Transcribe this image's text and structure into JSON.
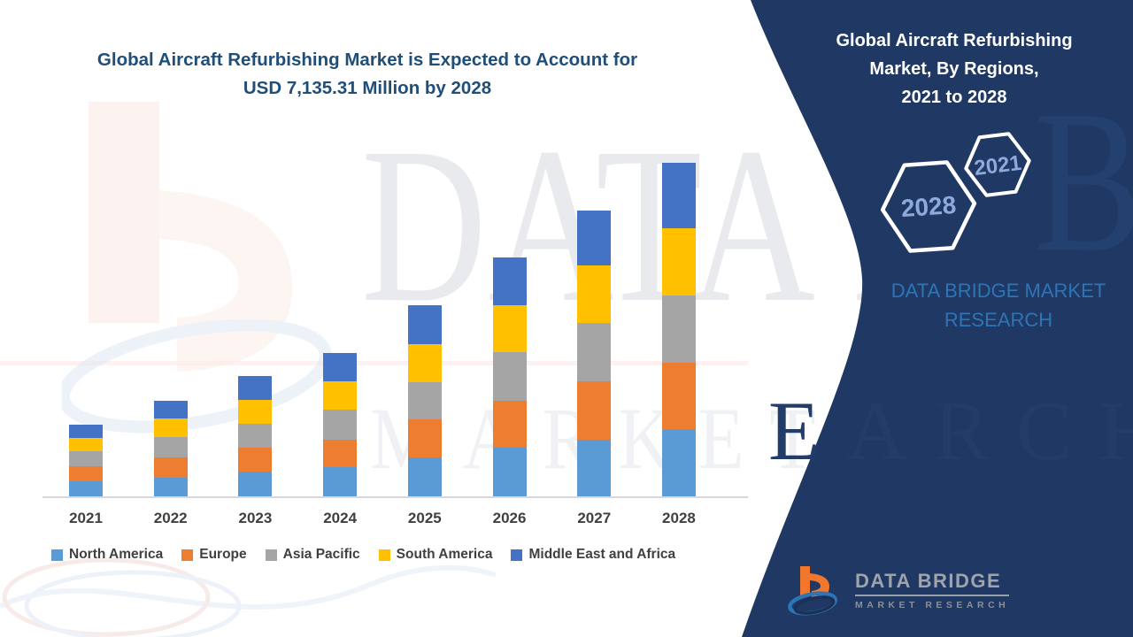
{
  "chart_data": {
    "type": "bar",
    "stacked": true,
    "title_line1": "Global Aircraft Refurbishing Market is Expected to Account for",
    "title_line2": "USD 7,135.31 Million by 2028",
    "unit": "USD Million",
    "highlight_value_2028": "7,135.31",
    "categories": [
      "2021",
      "2022",
      "2023",
      "2024",
      "2025",
      "2026",
      "2027",
      "2028"
    ],
    "series": [
      {
        "name": "North America",
        "color": "#5B9BD5",
        "values": [
          317,
          399,
          526,
          632,
          835,
          1044,
          1220,
          1443
        ]
      },
      {
        "name": "Europe",
        "color": "#ED7D31",
        "values": [
          328,
          437,
          518,
          583,
          822,
          1000,
          1234,
          1418
        ]
      },
      {
        "name": "Asia Pacific",
        "color": "#A5A5A5",
        "values": [
          317,
          431,
          507,
          632,
          778,
          1044,
          1260,
          1443
        ]
      },
      {
        "name": "South America",
        "color": "#FFC000",
        "values": [
          285,
          391,
          505,
          621,
          824,
          993,
          1220,
          1432.31
        ]
      },
      {
        "name": "Middle East and Africa",
        "color": "#4472C4",
        "values": [
          290,
          387,
          520,
          602,
          822,
          1025,
          1171,
          1399
        ]
      }
    ],
    "totals": [
      1537,
      2045,
      2576,
      3070,
      4081,
      5106,
      6105,
      7135.31
    ],
    "ylim": [
      0,
      7200
    ],
    "grid": false,
    "legend_position": "bottom",
    "xlabel": "",
    "ylabel": ""
  },
  "panel": {
    "bg_color": "#1F3864",
    "title_line1": "Global Aircraft Refurbishing",
    "title_line2": "Market, By Regions,",
    "title_line3": "2021 to 2028",
    "hex_small_label": "2021",
    "hex_large_label": "2028",
    "hex_text_color": "#8EAADB",
    "subtitle": "DATA BRIDGE MARKET RESEARCH",
    "subtitle_color": "#2E75B6"
  },
  "logo": {
    "name": "DATA BRIDGE",
    "tagline": "MARKET RESEARCH"
  },
  "watermark": {
    "line1": "DATA BRIDGE",
    "line2": "MARKET RESEARCH",
    "panel_letter": "B",
    "panel_letters2": "EARCH"
  },
  "colors": {
    "chart_title": "#1F4E79",
    "axis_label": "#404040",
    "legend_label": "#404040",
    "north_america": "#5B9BD5",
    "europe": "#ED7D31",
    "asia_pacific": "#A5A5A5",
    "south_america": "#FFC000",
    "middle_east_africa": "#4472C4"
  }
}
